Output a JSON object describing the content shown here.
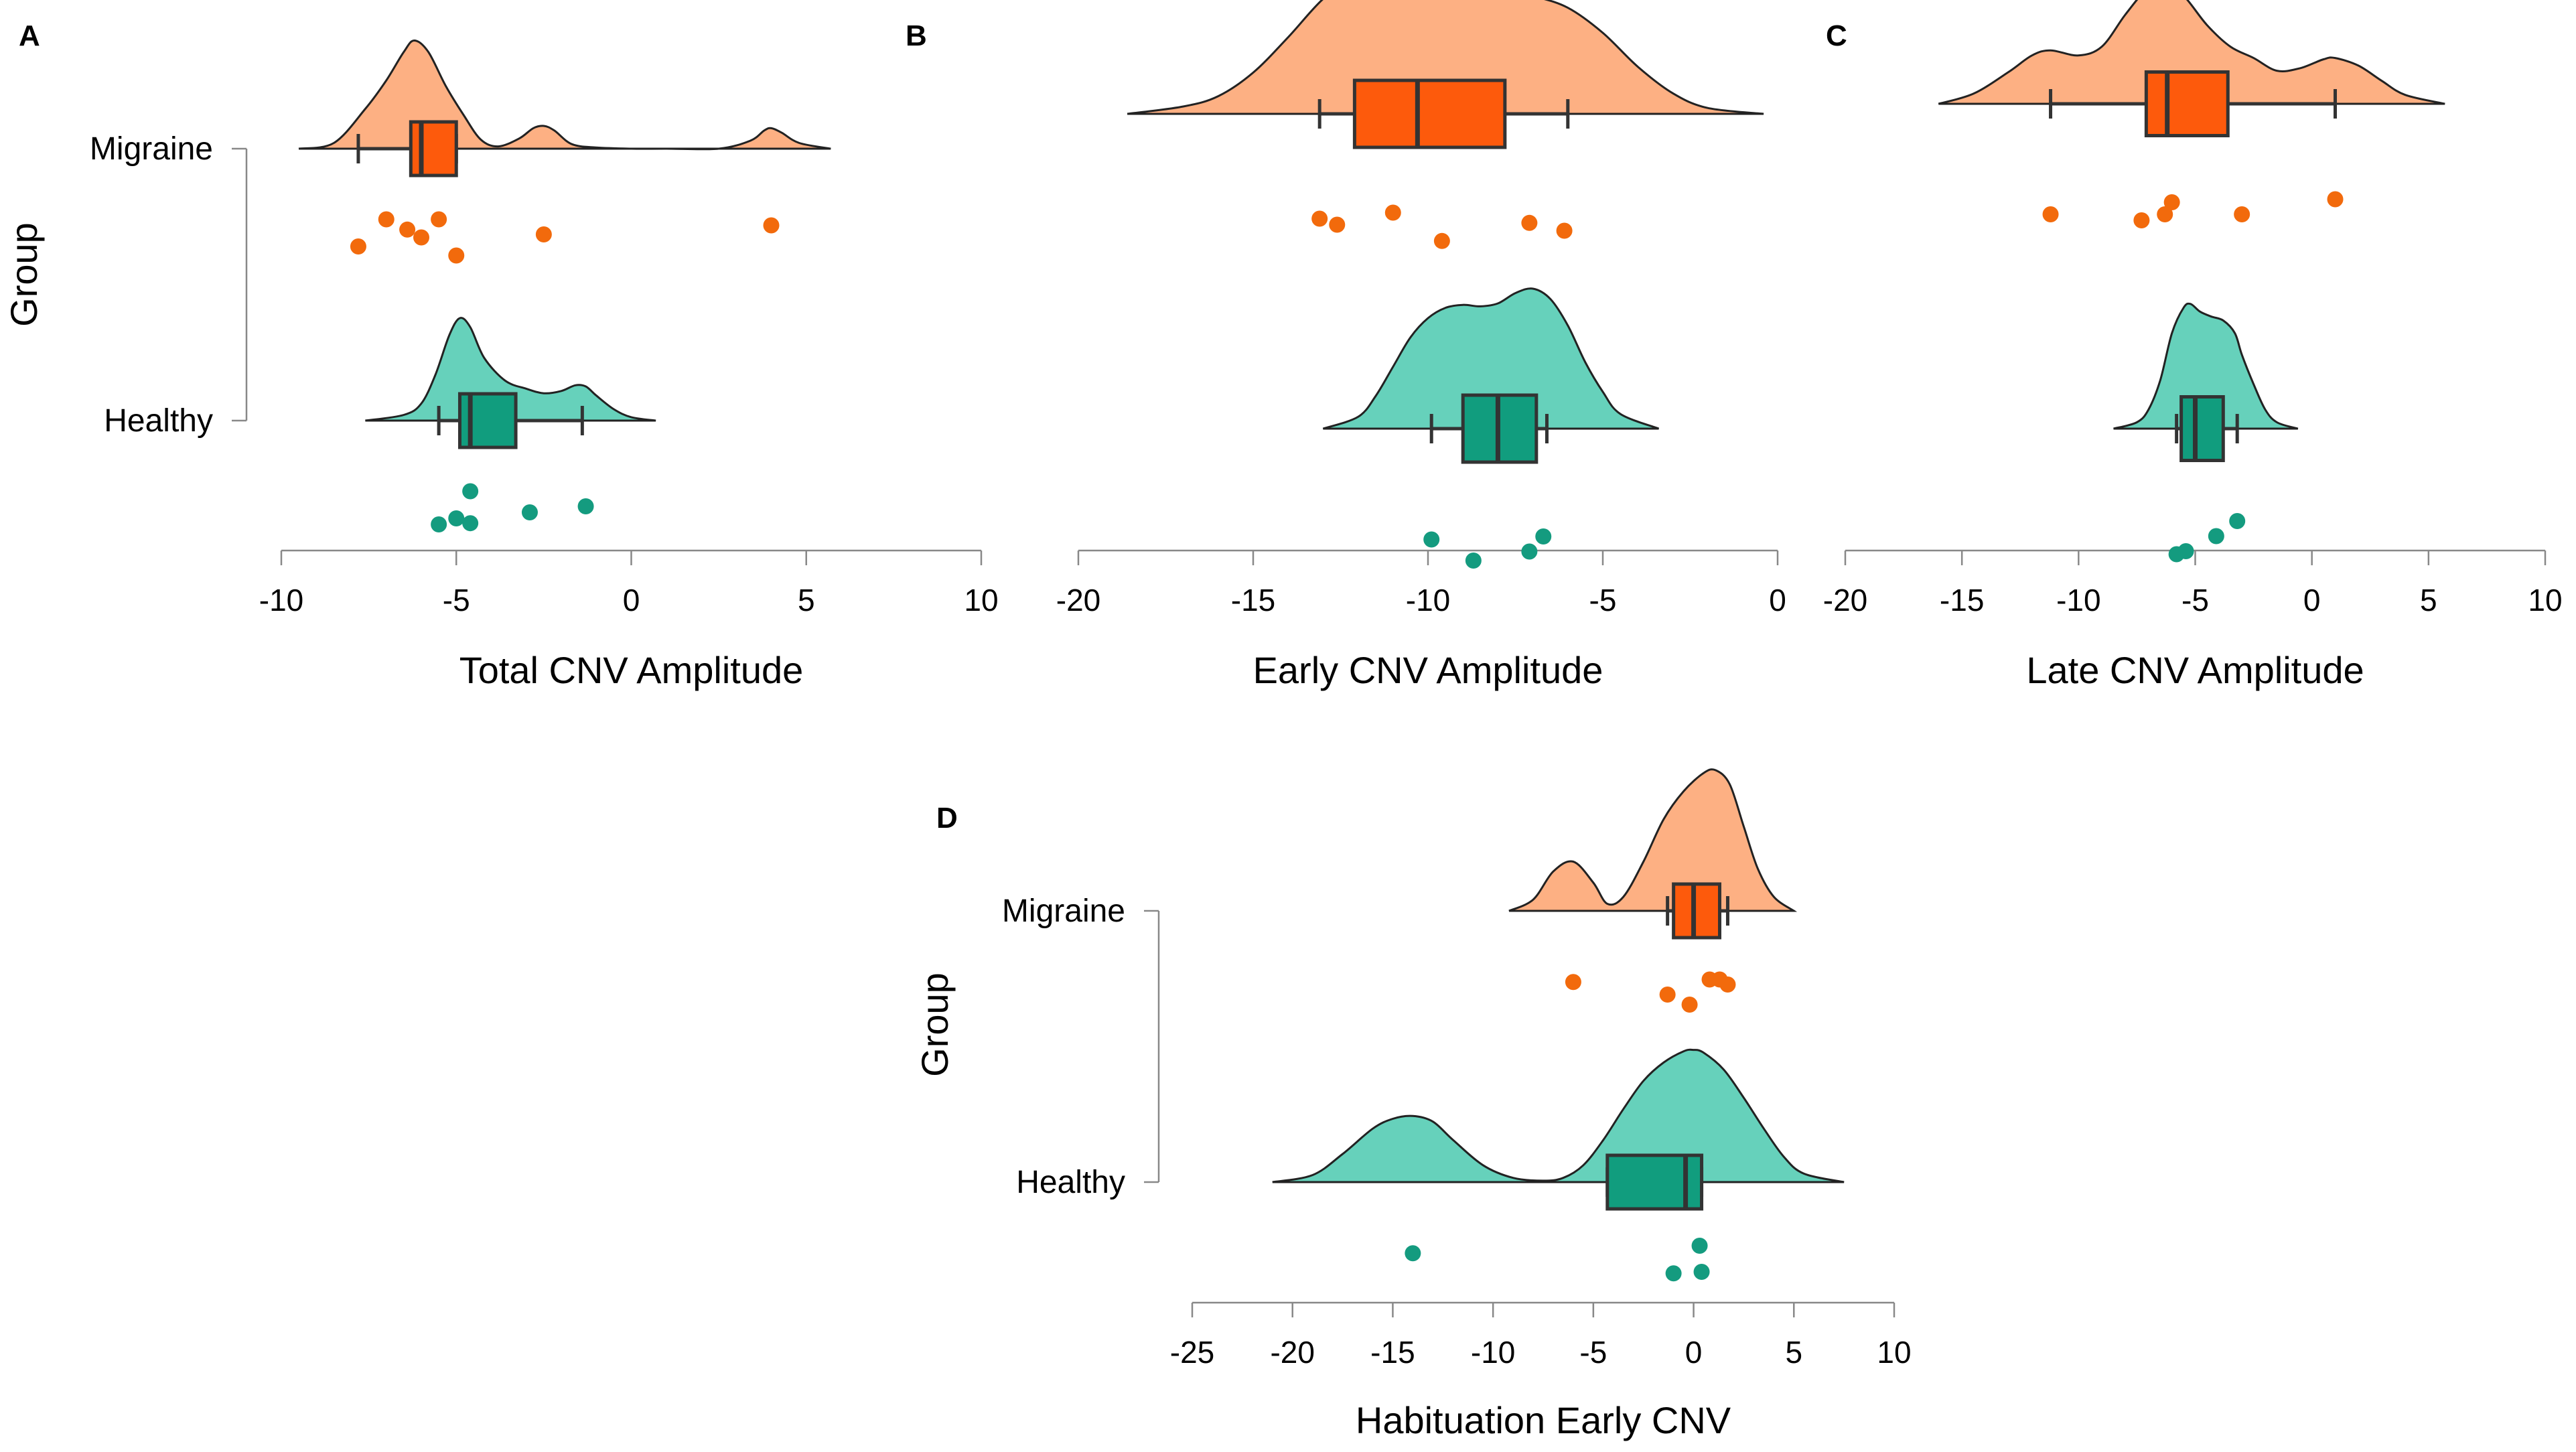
{
  "colors": {
    "migraine_density": "#fdb083",
    "migraine_box": "#fd5a0c",
    "migraine_points": "#f26a0c",
    "healthy_density": "#66d1bb",
    "healthy_box": "#119d7e",
    "healthy_points": "#149b7f"
  },
  "chart_data": [
    {
      "panel": "A",
      "type": "raincloud",
      "xlabel": "Total CNV Amplitude",
      "ylabel": "Group",
      "xlim": [
        -10,
        10
      ],
      "xticks": [
        -10,
        -5,
        0,
        5,
        10
      ],
      "categories": [
        "Migraine",
        "Healthy"
      ],
      "series": [
        {
          "name": "Migraine",
          "box": {
            "lower_whisker": -7.8,
            "q1": -6.3,
            "median": -6.0,
            "q3": -5.0,
            "upper_whisker": -5.0
          },
          "density": {
            "x": [
              -9.5,
              -8.5,
              -7.6,
              -7.0,
              -6.5,
              -6.2,
              -5.8,
              -5.3,
              -4.8,
              -4.3,
              -3.8,
              -3.2,
              -2.8,
              -2.5,
              -2.2,
              -1.7,
              -1.0,
              0.0,
              1.0,
              2.5,
              3.4,
              3.8,
              4.0,
              4.3,
              4.8,
              5.7
            ],
            "y": [
              0.0,
              0.05,
              0.35,
              0.6,
              0.85,
              0.95,
              0.85,
              0.55,
              0.3,
              0.08,
              0.02,
              0.09,
              0.18,
              0.2,
              0.16,
              0.04,
              0.01,
              0.0,
              0.0,
              0.0,
              0.07,
              0.16,
              0.18,
              0.14,
              0.05,
              0.0
            ]
          },
          "points": [
            {
              "x": -7.0,
              "jitter": 0.25
            },
            {
              "x": -6.4,
              "jitter": 0.42
            },
            {
              "x": -6.0,
              "jitter": 0.55
            },
            {
              "x": -5.5,
              "jitter": 0.25
            },
            {
              "x": -7.8,
              "jitter": 0.7
            },
            {
              "x": -5.0,
              "jitter": 0.85
            },
            {
              "x": -2.5,
              "jitter": 0.5
            },
            {
              "x": 4.0,
              "jitter": 0.35
            }
          ]
        },
        {
          "name": "Healthy",
          "box": {
            "lower_whisker": -5.5,
            "q1": -4.9,
            "median": -4.6,
            "q3": -3.3,
            "upper_whisker": -1.4
          },
          "density": {
            "x": [
              -7.6,
              -6.5,
              -6.0,
              -5.6,
              -5.2,
              -4.9,
              -4.6,
              -4.2,
              -3.6,
              -3.0,
              -2.5,
              -2.0,
              -1.6,
              -1.3,
              -1.0,
              -0.5,
              0.0,
              0.7
            ],
            "y": [
              0.0,
              0.05,
              0.15,
              0.4,
              0.75,
              0.9,
              0.82,
              0.55,
              0.35,
              0.28,
              0.24,
              0.26,
              0.31,
              0.3,
              0.22,
              0.1,
              0.03,
              0.0
            ]
          },
          "points": [
            {
              "x": -4.6,
              "jitter": 0.25
            },
            {
              "x": -2.9,
              "jitter": 0.6
            },
            {
              "x": -1.3,
              "jitter": 0.5
            },
            {
              "x": -5.0,
              "jitter": 0.7
            },
            {
              "x": -5.5,
              "jitter": 0.8
            },
            {
              "x": -4.6,
              "jitter": 0.78
            }
          ]
        }
      ]
    },
    {
      "panel": "B",
      "type": "raincloud",
      "xlabel": "Early CNV Amplitude",
      "ylabel": "",
      "xlim": [
        -20,
        0
      ],
      "xticks": [
        -20,
        -15,
        -10,
        -5,
        0
      ],
      "categories": [
        "Migraine",
        "Healthy"
      ],
      "series": [
        {
          "name": "Migraine",
          "box": {
            "lower_whisker": -13.1,
            "q1": -12.1,
            "median": -10.3,
            "q3": -7.8,
            "upper_whisker": -6.0
          },
          "density": {
            "x": [
              -18.6,
              -17.0,
              -16.0,
              -15.0,
              -14.0,
              -13.0,
              -12.0,
              -11.0,
              -10.0,
              -9.0,
              -8.0,
              -7.0,
              -6.0,
              -5.0,
              -4.0,
              -3.0,
              -2.0,
              -0.4
            ],
            "y": [
              0.0,
              0.05,
              0.12,
              0.28,
              0.52,
              0.78,
              0.95,
              1.0,
              0.97,
              0.9,
              0.85,
              0.8,
              0.72,
              0.55,
              0.32,
              0.14,
              0.04,
              0.0
            ]
          },
          "points": [
            {
              "x": -13.1,
              "jitter": 0.35
            },
            {
              "x": -12.6,
              "jitter": 0.45
            },
            {
              "x": -11.0,
              "jitter": 0.25
            },
            {
              "x": -9.6,
              "jitter": 0.72
            },
            {
              "x": -7.1,
              "jitter": 0.42
            },
            {
              "x": -6.1,
              "jitter": 0.55
            }
          ]
        },
        {
          "name": "Healthy",
          "box": {
            "lower_whisker": -9.9,
            "q1": -9.0,
            "median": -8.0,
            "q3": -6.9,
            "upper_whisker": -6.6
          },
          "density": {
            "x": [
              -13.0,
              -12.0,
              -11.5,
              -11.0,
              -10.5,
              -10.0,
              -9.5,
              -9.0,
              -8.5,
              -8.0,
              -7.5,
              -7.0,
              -6.5,
              -6.0,
              -5.5,
              -5.0,
              -4.5,
              -3.4
            ],
            "y": [
              0.0,
              0.08,
              0.22,
              0.42,
              0.62,
              0.75,
              0.82,
              0.84,
              0.83,
              0.85,
              0.92,
              0.95,
              0.88,
              0.7,
              0.45,
              0.25,
              0.1,
              0.0
            ]
          },
          "points": [
            {
              "x": -9.9,
              "jitter": 0.45
            },
            {
              "x": -8.7,
              "jitter": 0.8
            },
            {
              "x": -7.1,
              "jitter": 0.65
            },
            {
              "x": -6.7,
              "jitter": 0.4
            }
          ]
        }
      ]
    },
    {
      "panel": "C",
      "type": "raincloud",
      "xlabel": "Late CNV Amplitude",
      "ylabel": "",
      "xlim": [
        -20,
        10
      ],
      "xticks": [
        -20,
        -15,
        -10,
        -5,
        0,
        5,
        10
      ],
      "categories": [
        "Migraine",
        "Healthy"
      ],
      "series": [
        {
          "name": "Migraine",
          "box": {
            "lower_whisker": -11.2,
            "q1": -7.1,
            "median": -6.2,
            "q3": -3.6,
            "upper_whisker": 1.0
          },
          "density": {
            "x": [
              -16.0,
              -14.5,
              -13.0,
              -12.0,
              -11.2,
              -10.0,
              -9.0,
              -8.0,
              -7.0,
              -6.4,
              -5.5,
              -4.5,
              -3.5,
              -2.5,
              -1.5,
              -0.5,
              0.5,
              1.0,
              2.0,
              3.0,
              4.0,
              5.7
            ],
            "y": [
              0.0,
              0.08,
              0.25,
              0.38,
              0.42,
              0.38,
              0.45,
              0.7,
              0.92,
              0.96,
              0.85,
              0.62,
              0.45,
              0.36,
              0.26,
              0.28,
              0.35,
              0.36,
              0.3,
              0.18,
              0.07,
              0.0
            ]
          },
          "points": [
            {
              "x": -11.2,
              "jitter": 0.5
            },
            {
              "x": -7.3,
              "jitter": 0.6
            },
            {
              "x": -6.3,
              "jitter": 0.5
            },
            {
              "x": -6.0,
              "jitter": 0.3
            },
            {
              "x": -3.0,
              "jitter": 0.5
            },
            {
              "x": 1.0,
              "jitter": 0.25
            }
          ]
        },
        {
          "name": "Healthy",
          "box": {
            "lower_whisker": -5.8,
            "q1": -5.6,
            "median": -5.0,
            "q3": -3.8,
            "upper_whisker": -3.2
          },
          "density": {
            "x": [
              -8.5,
              -7.5,
              -7.0,
              -6.5,
              -6.0,
              -5.5,
              -5.2,
              -4.8,
              -4.3,
              -3.8,
              -3.3,
              -3.0,
              -2.5,
              -2.0,
              -1.5,
              -0.6
            ],
            "y": [
              0.0,
              0.05,
              0.15,
              0.38,
              0.75,
              0.95,
              0.98,
              0.92,
              0.88,
              0.85,
              0.75,
              0.58,
              0.35,
              0.15,
              0.05,
              0.0
            ]
          },
          "points": [
            {
              "x": -3.2,
              "jitter": 0.2
            },
            {
              "x": -4.1,
              "jitter": 0.45
            },
            {
              "x": -5.4,
              "jitter": 0.7
            },
            {
              "x": -5.8,
              "jitter": 0.75
            }
          ]
        }
      ]
    },
    {
      "panel": "D",
      "type": "raincloud",
      "xlabel": "Habituation Early CNV",
      "ylabel": "Group",
      "xlim": [
        -25,
        10
      ],
      "xticks": [
        -25,
        -20,
        -15,
        -10,
        -5,
        0,
        5,
        10
      ],
      "categories": [
        "Migraine",
        "Healthy"
      ],
      "series": [
        {
          "name": "Migraine",
          "box": {
            "lower_whisker": -1.3,
            "q1": -1.0,
            "median": 0.0,
            "q3": 1.3,
            "upper_whisker": 1.7
          },
          "density": {
            "x": [
              -9.2,
              -8.0,
              -7.0,
              -6.0,
              -5.0,
              -4.3,
              -3.5,
              -2.5,
              -1.5,
              -0.5,
              0.5,
              1.1,
              1.8,
              2.5,
              3.2,
              4.0,
              5.0
            ],
            "y": [
              0.0,
              0.08,
              0.28,
              0.35,
              0.2,
              0.05,
              0.1,
              0.35,
              0.65,
              0.85,
              0.98,
              1.0,
              0.9,
              0.6,
              0.3,
              0.1,
              0.0
            ]
          },
          "points": [
            {
              "x": -6.0,
              "jitter": 0.35
            },
            {
              "x": -1.3,
              "jitter": 0.6
            },
            {
              "x": -0.2,
              "jitter": 0.8
            },
            {
              "x": 0.8,
              "jitter": 0.3
            },
            {
              "x": 1.3,
              "jitter": 0.3
            },
            {
              "x": 1.7,
              "jitter": 0.4
            }
          ]
        },
        {
          "name": "Healthy",
          "box": {
            "lower_whisker": -4.3,
            "q1": -4.3,
            "median": -0.4,
            "q3": 0.4,
            "upper_whisker": 0.4
          },
          "density": {
            "x": [
              -21.0,
              -19.0,
              -17.5,
              -16.0,
              -15.0,
              -14.0,
              -13.0,
              -12.0,
              -10.5,
              -9.0,
              -7.5,
              -6.5,
              -5.5,
              -4.5,
              -3.5,
              -2.5,
              -1.5,
              -0.5,
              0.0,
              0.5,
              1.5,
              2.5,
              3.5,
              4.5,
              5.5,
              7.5
            ],
            "y": [
              0.0,
              0.05,
              0.2,
              0.38,
              0.45,
              0.47,
              0.43,
              0.3,
              0.12,
              0.03,
              0.01,
              0.03,
              0.12,
              0.3,
              0.52,
              0.72,
              0.85,
              0.93,
              0.94,
              0.92,
              0.8,
              0.6,
              0.38,
              0.18,
              0.06,
              0.0
            ]
          },
          "points": [
            {
              "x": -14.0,
              "jitter": 0.35
            },
            {
              "x": 0.3,
              "jitter": 0.2
            },
            {
              "x": -1.0,
              "jitter": 0.75
            },
            {
              "x": 0.4,
              "jitter": 0.72
            }
          ]
        }
      ]
    }
  ]
}
